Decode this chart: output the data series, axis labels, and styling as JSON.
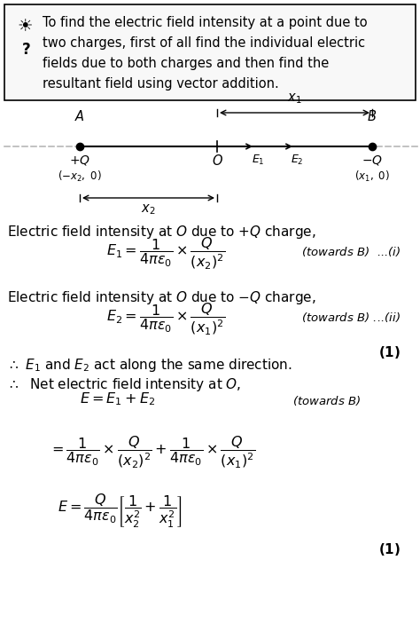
{
  "bg_color": "#ffffff",
  "box_text": "To find the electric field intensity at a point due to\ntwo charges, first of all find the individual electric\nfields due to both charges and then find the\nresultant field using vector addition.",
  "text_color": "#000000",
  "box_border_color": "#000000",
  "dashed_color": "#888888",
  "fig_width": 4.74,
  "fig_height": 7.11,
  "dpi": 100
}
